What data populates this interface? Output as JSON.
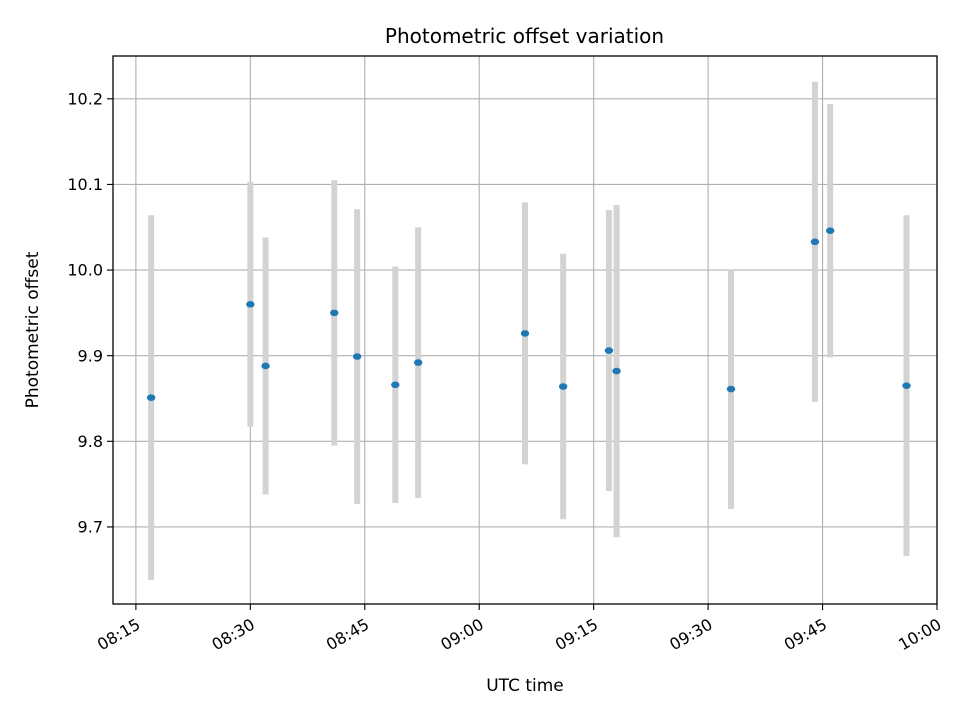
{
  "chart_data": {
    "type": "scatter",
    "title": "Photometric offset variation",
    "xlabel": "UTC time",
    "ylabel": "Photometric offset",
    "x_ticks": [
      "08:15",
      "08:30",
      "08:45",
      "09:00",
      "09:15",
      "09:30",
      "09:45",
      "10:00"
    ],
    "y_ticks": [
      "9.7",
      "9.8",
      "9.9",
      "10.0",
      "10.1",
      "10.2"
    ],
    "xlim": [
      "08:12",
      "10:00"
    ],
    "ylim": [
      9.61,
      10.25
    ],
    "grid": true,
    "colors": {
      "points": "#1f77b4",
      "errorbars": "#d3d3d3",
      "grid": "#b0b0b0",
      "axes": "#000000"
    },
    "points": [
      {
        "time": "08:17",
        "value": 9.851,
        "error": 0.213
      },
      {
        "time": "08:30",
        "value": 9.96,
        "error": 0.143
      },
      {
        "time": "08:32",
        "value": 9.888,
        "error": 0.15
      },
      {
        "time": "08:41",
        "value": 9.95,
        "error": 0.155
      },
      {
        "time": "08:44",
        "value": 9.899,
        "error": 0.172
      },
      {
        "time": "08:49",
        "value": 9.866,
        "error": 0.138
      },
      {
        "time": "08:52",
        "value": 9.892,
        "error": 0.158
      },
      {
        "time": "09:06",
        "value": 9.926,
        "error": 0.153
      },
      {
        "time": "09:11",
        "value": 9.864,
        "error": 0.155
      },
      {
        "time": "09:17",
        "value": 9.906,
        "error": 0.164
      },
      {
        "time": "09:18",
        "value": 9.882,
        "error": 0.194
      },
      {
        "time": "09:33",
        "value": 9.861,
        "error": 0.14
      },
      {
        "time": "09:44",
        "value": 10.033,
        "error": 0.187
      },
      {
        "time": "09:46",
        "value": 10.046,
        "error": 0.148
      },
      {
        "time": "09:56",
        "value": 9.865,
        "error": 0.199
      }
    ]
  }
}
